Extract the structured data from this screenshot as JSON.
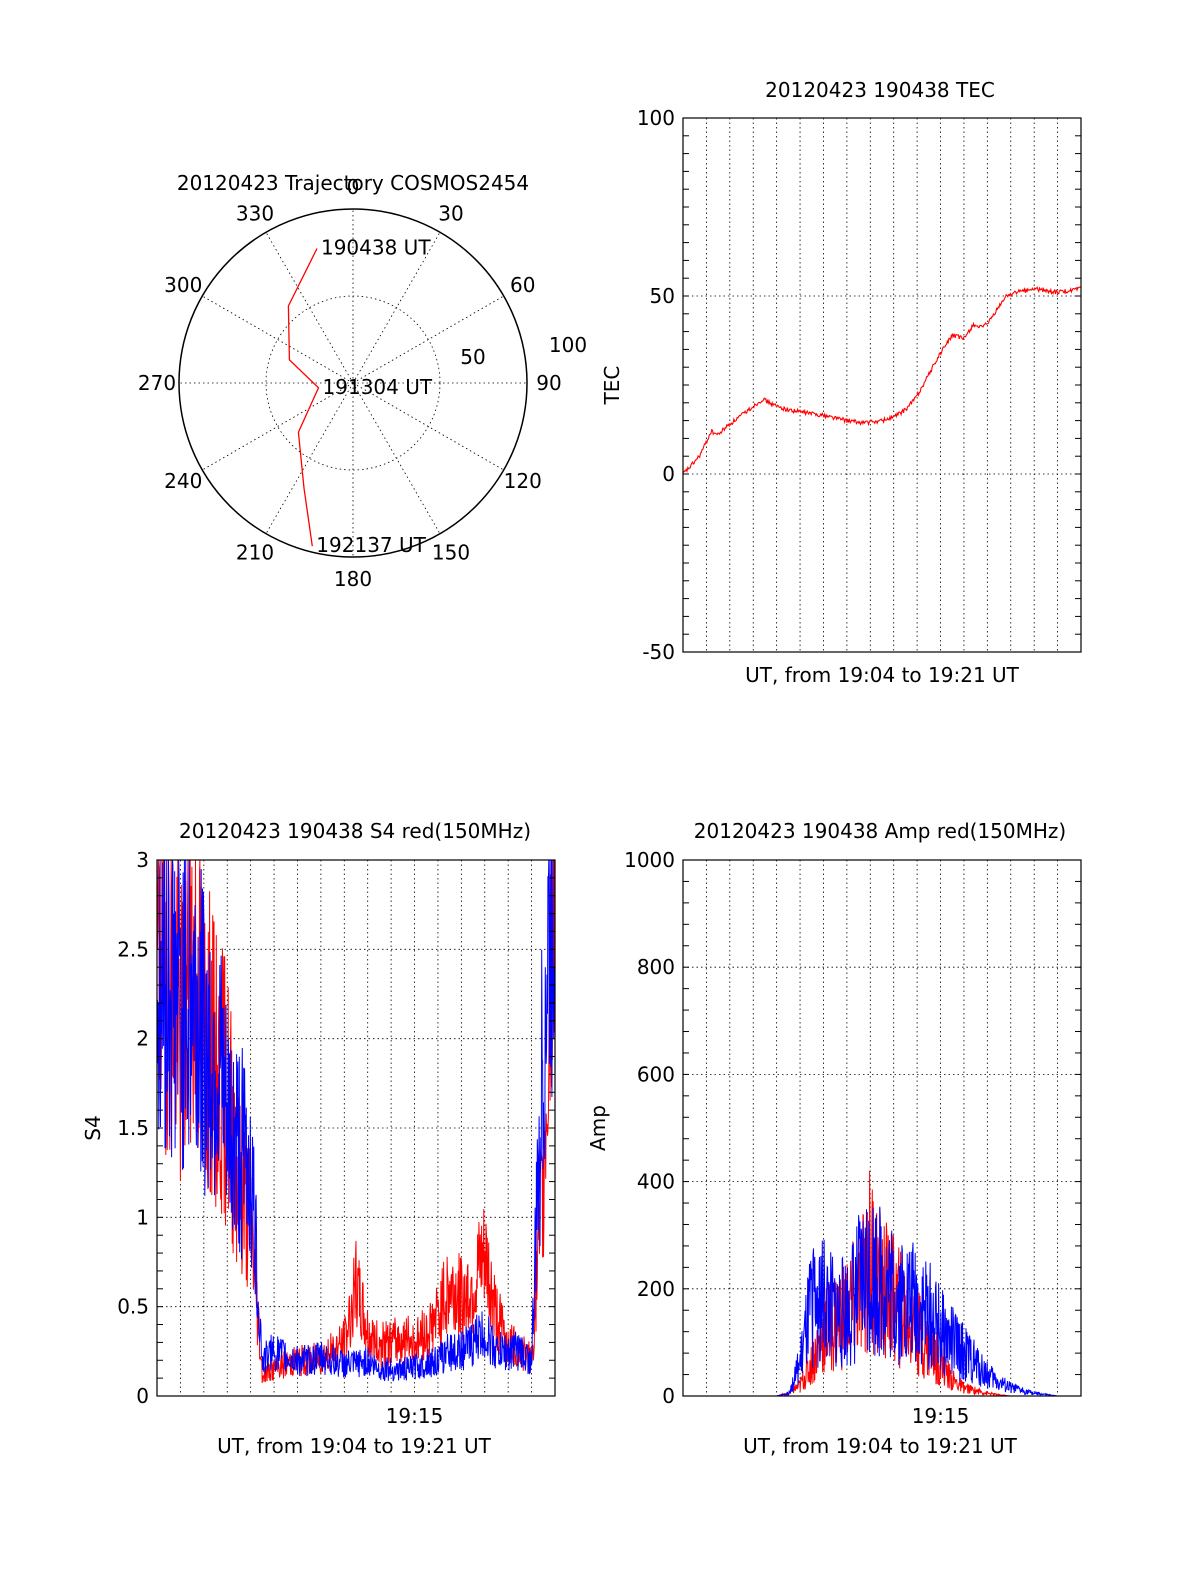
{
  "chart_data": [
    {
      "id": "trajectory",
      "type": "polar",
      "title": "20120423 Trajectory COSMOS2454",
      "azimuth_labels": [
        "0",
        "30",
        "60",
        "90",
        "120",
        "150",
        "180",
        "210",
        "240",
        "270",
        "300",
        "330"
      ],
      "radius_labels": [
        "50",
        "100"
      ],
      "series": [
        {
          "color": "#ff0000",
          "points": [
            {
              "az": 345,
              "el": 18
            },
            {
              "az": 320,
              "el": 38
            },
            {
              "az": 290,
              "el": 55
            },
            {
              "az": 262,
              "el": 72
            },
            {
              "az": 228,
              "el": 52
            },
            {
              "az": 205,
              "el": 30
            },
            {
              "az": 194,
              "el": 3
            }
          ]
        }
      ],
      "annotations": [
        {
          "text": "190438 UT",
          "az": 345,
          "el": 18
        },
        {
          "text": "191304 UT",
          "az": 262,
          "el": 72
        },
        {
          "text": "192137 UT",
          "az": 194,
          "el": 3
        }
      ]
    },
    {
      "id": "tec",
      "type": "line",
      "title": "20120423 190438 TEC",
      "xlabel": "UT, from 19:04 to 19:21 UT",
      "ylabel": "TEC",
      "ylim": [
        -50,
        100
      ],
      "yticks": [
        "-50",
        "0",
        "50",
        "100"
      ],
      "xlim": [
        0,
        17
      ],
      "xtick_labels": [],
      "grid": true,
      "series": [
        {
          "color": "#ff0000",
          "x": [
            0.0,
            0.3,
            0.7,
            1.0,
            1.2,
            1.5,
            1.8,
            2.2,
            2.6,
            3.0,
            3.4,
            3.7,
            4.0,
            4.5,
            5.0,
            5.5,
            6.0,
            6.5,
            7.0,
            7.5,
            8.0,
            8.5,
            9.0,
            9.5,
            10.0,
            10.5,
            11.0,
            11.5,
            12.0,
            12.4,
            12.8,
            13.1,
            13.3,
            13.5,
            13.8,
            14.2,
            14.6,
            15.0,
            15.5,
            16.0,
            16.5,
            17.0
          ],
          "y": [
            0,
            2,
            5,
            9,
            12,
            11,
            13,
            15,
            17,
            19,
            21,
            20,
            19,
            18,
            17.5,
            17,
            16.5,
            15.8,
            15,
            14.5,
            14.5,
            15,
            16,
            18,
            22,
            28,
            34,
            39,
            38,
            42,
            41,
            43,
            45,
            47,
            50,
            51,
            51.5,
            52,
            51.5,
            51,
            51.5,
            52
          ]
        }
      ]
    },
    {
      "id": "s4",
      "type": "line",
      "title": "20120423 190438 S4 red(150MHz)",
      "xlabel": "UT, from 19:04 to 19:21 UT",
      "ylabel": "S4",
      "ylim": [
        0,
        3
      ],
      "yticks": [
        "0",
        "0.5",
        "1",
        "1.5",
        "2",
        "2.5",
        "3"
      ],
      "xlim": [
        0,
        17
      ],
      "xtick_labels": [
        {
          "x": 11,
          "label": "19:15"
        }
      ],
      "grid": true,
      "series": [
        {
          "color": "#ff0000",
          "x": [
            0,
            0.5,
            1,
            1.5,
            2,
            2.5,
            3,
            3.5,
            4,
            4.5,
            5,
            5.5,
            6,
            6.5,
            7,
            7.5,
            8,
            8.5,
            9,
            9.5,
            10,
            10.5,
            11,
            11.5,
            12,
            12.5,
            13,
            13.5,
            14,
            14.5,
            15,
            15.5,
            16,
            16.5,
            17
          ],
          "y": [
            2.3,
            2.5,
            2.0,
            2.4,
            2.1,
            1.8,
            1.7,
            1.2,
            1.0,
            0.12,
            0.15,
            0.18,
            0.2,
            0.2,
            0.22,
            0.25,
            0.3,
            0.6,
            0.35,
            0.28,
            0.3,
            0.32,
            0.3,
            0.35,
            0.45,
            0.6,
            0.55,
            0.6,
            0.75,
            0.45,
            0.3,
            0.25,
            0.2,
            1.2,
            3.0
          ]
        },
        {
          "color": "#0000ff",
          "x": [
            0,
            0.5,
            1,
            1.5,
            2,
            2.5,
            3,
            3.5,
            4,
            4.5,
            5,
            5.5,
            6,
            6.5,
            7,
            7.5,
            8,
            8.5,
            9,
            9.5,
            10,
            10.5,
            11,
            11.5,
            12,
            12.5,
            13,
            13.5,
            14,
            14.5,
            15,
            15.5,
            16,
            16.5,
            17
          ],
          "y": [
            2.2,
            2.4,
            2.2,
            2.3,
            2.0,
            1.9,
            1.5,
            1.4,
            1.3,
            0.2,
            0.25,
            0.22,
            0.2,
            0.2,
            0.22,
            0.2,
            0.18,
            0.18,
            0.2,
            0.15,
            0.15,
            0.15,
            0.16,
            0.18,
            0.2,
            0.25,
            0.25,
            0.3,
            0.35,
            0.25,
            0.25,
            0.25,
            0.2,
            2.0,
            3.0
          ]
        }
      ]
    },
    {
      "id": "amp",
      "type": "line",
      "title": "20120423 190438 Amp red(150MHz)",
      "xlabel": "UT, from 19:04 to 19:21 UT",
      "ylabel": "Amp",
      "ylim": [
        0,
        1000
      ],
      "yticks": [
        "0",
        "200",
        "400",
        "600",
        "800",
        "1000"
      ],
      "xlim": [
        0,
        17
      ],
      "xtick_labels": [
        {
          "x": 11,
          "label": "19:15"
        }
      ],
      "grid": true,
      "series": [
        {
          "color": "#ff0000",
          "x": [
            0,
            1,
            2,
            3,
            4,
            4.5,
            5,
            5.5,
            6,
            6.5,
            7,
            7.5,
            8,
            8.5,
            9,
            9.5,
            10,
            10.5,
            11,
            11.5,
            12,
            12.5,
            13,
            13.5,
            14,
            15,
            16,
            17
          ],
          "y": [
            0,
            0,
            0,
            0,
            0,
            5,
            20,
            60,
            120,
            140,
            160,
            180,
            260,
            200,
            180,
            150,
            120,
            90,
            60,
            30,
            15,
            10,
            5,
            2,
            0,
            0,
            0,
            0
          ]
        },
        {
          "color": "#0000ff",
          "x": [
            0,
            1,
            2,
            3,
            4,
            4.5,
            5,
            5.5,
            6,
            6.5,
            7,
            7.5,
            8,
            8.5,
            9,
            9.5,
            10,
            10.5,
            11,
            11.5,
            12,
            12.5,
            13,
            13.5,
            14,
            15,
            16,
            17
          ],
          "y": [
            0,
            0,
            0,
            0,
            0,
            5,
            60,
            170,
            180,
            150,
            160,
            200,
            240,
            210,
            190,
            180,
            170,
            150,
            120,
            100,
            80,
            60,
            40,
            25,
            15,
            5,
            0,
            0
          ]
        }
      ]
    }
  ]
}
